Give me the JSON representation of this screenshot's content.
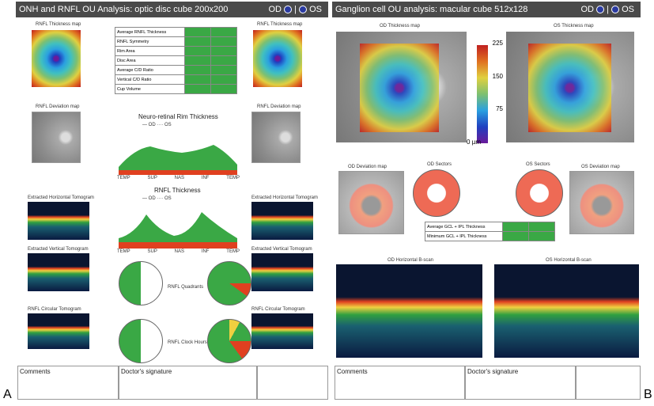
{
  "panel_a": {
    "title": "ONH and RNFL OU Analysis: optic disc cube 200x200",
    "od": "OD",
    "os": "OS",
    "letter": "A",
    "od_thickness_map": "RNFL Thickness map",
    "os_thickness_map": "RNFL Thickness map",
    "table_rows": [
      "Average RNFL Thickness",
      "RNFL Symmetry",
      "Rim Area",
      "Disc Area",
      "Average C/D Ratio",
      "Vertical C/D Ratio",
      "Cup Volume"
    ],
    "od_deviation_map": "RNFL Deviation map",
    "os_deviation_map": "RNFL Deviation map",
    "rim_chart": {
      "title": "Neuro-retinal Rim Thickness",
      "legend": [
        "OD",
        "OS"
      ],
      "x_labels": [
        "TEMP",
        "SUP",
        "NAS",
        "INF",
        "TEMP"
      ]
    },
    "rnfl_chart": {
      "title": "RNFL Thickness",
      "legend": [
        "OD",
        "OS"
      ],
      "x_labels": [
        "TEMP",
        "SUP",
        "NAS",
        "INF",
        "TEMP"
      ]
    },
    "tomograms": [
      "Extracted Horizontal Tomogram",
      "Extracted Horizontal Tomogram",
      "Extracted Vertical Tomogram",
      "Extracted Vertical Tomogram",
      "RNFL Circular Tomogram",
      "RNFL Circular Tomogram"
    ],
    "quadrants": "RNFL Quadrants",
    "clock_hours": "RNFL Clock Hours",
    "footer": {
      "comments": "Comments",
      "signature": "Doctor's signature"
    }
  },
  "panel_b": {
    "title": "Ganglion cell OU analysis: macular cube 512x128",
    "od": "OD",
    "os": "OS",
    "letter": "B",
    "od_thickness_map": "OD Thickness map",
    "os_thickness_map": "OS Thickness map",
    "scale": [
      "225",
      "150",
      "75",
      "0 µm"
    ],
    "od_deviation_map": "OD Deviation map",
    "od_sectors": "OD Sectors",
    "os_sectors": "OS Sectors",
    "os_deviation_map": "OS Deviation map",
    "table_rows": [
      "Average GCL + IPL Thickness",
      "Minimum GCL + IPL Thickness"
    ],
    "od_bscan": "OD Horizontal B-scan",
    "os_bscan": "OS Horizontal B-scan",
    "footer": {
      "comments": "Comments",
      "signature": "Doctor's signature"
    }
  }
}
